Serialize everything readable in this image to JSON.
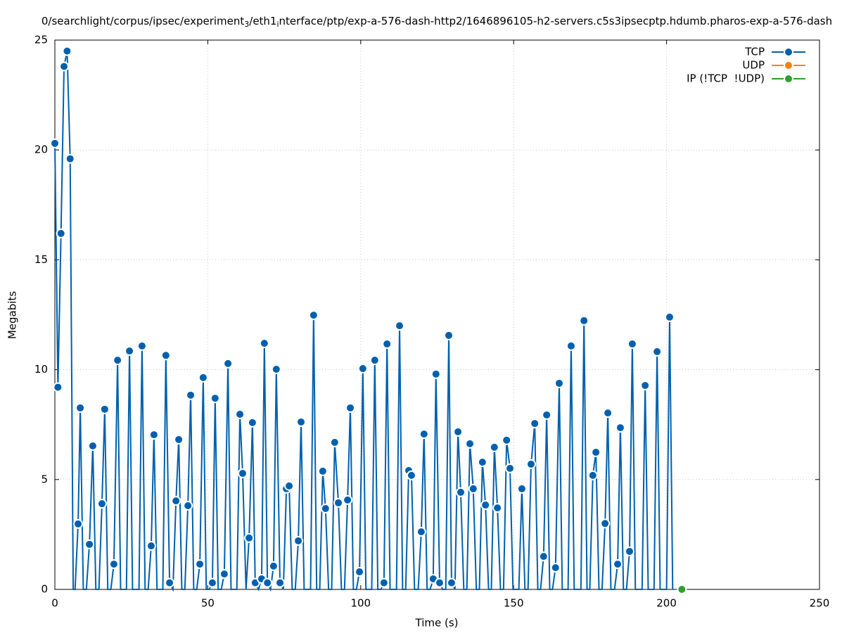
{
  "chart_data": {
    "type": "line",
    "title": [
      "0/searchlight/corpus/ipsec/experiment",
      "3",
      "/eth1",
      "i",
      "nterface/ptp/exp-a-576-dash-http2/1646896105-h2-servers.c5s3ipsecptp.hdumb.pharos-exp-a-576-dash"
    ],
    "x_label": "Time (s)",
    "y_label": "Megabits",
    "xlim": [
      0,
      250
    ],
    "xticks": [
      0,
      50,
      100,
      150,
      200,
      250
    ],
    "ylim": [
      0,
      25
    ],
    "yticks": [
      0,
      5,
      10,
      15,
      20,
      25
    ],
    "grid": true,
    "legend": "top-right",
    "series": [
      {
        "name": "TCP",
        "color": "#0060ad",
        "x": [
          0,
          1,
          2,
          3,
          4,
          5,
          6,
          6.6,
          7.6,
          8.3,
          9.3,
          10.3,
          11.3,
          12.4,
          13.4,
          14.4,
          15.4,
          16.3,
          17.3,
          18.3,
          19.3,
          20.5,
          21.5,
          23.4,
          24.4,
          25.4,
          27.5,
          28.5,
          29.5,
          30.5,
          31.5,
          32.4,
          33.4,
          35.3,
          36.3,
          37.5,
          38.6,
          39.6,
          40.5,
          41.5,
          42.5,
          43.5,
          44.4,
          45.4,
          46.4,
          47.4,
          48.5,
          49.5,
          50.5,
          51.5,
          52.4,
          53.4,
          54.4,
          55.4,
          56.6,
          57.6,
          59.5,
          60.5,
          61.4,
          62.5,
          63.5,
          64.6,
          65.5,
          66.6,
          67.6,
          68.5,
          69.5,
          70.5,
          71.5,
          72.4,
          73.6,
          74.7,
          75.7,
          76.6,
          77.6,
          78.6,
          79.6,
          80.5,
          81.5,
          83.6,
          84.6,
          85.6,
          86.6,
          87.6,
          88.5,
          89.5,
          90.5,
          91.5,
          92.7,
          93.7,
          94.7,
          95.7,
          96.6,
          97.6,
          98.6,
          99.6,
          100.7,
          101.7,
          103.6,
          104.6,
          105.6,
          106.6,
          107.6,
          108.6,
          109.6,
          111.7,
          112.7,
          113.7,
          114.7,
          115.7,
          116.6,
          117.6,
          118.8,
          119.8,
          120.7,
          121.7,
          122.7,
          123.7,
          124.6,
          125.8,
          126.8,
          127.8,
          128.8,
          129.7,
          130.8,
          131.8,
          132.7,
          133.7,
          134.7,
          135.7,
          136.8,
          137.8,
          138.8,
          139.8,
          140.8,
          141.8,
          142.7,
          143.7,
          144.7,
          145.7,
          146.7,
          147.7,
          148.8,
          149.8,
          151.7,
          152.7,
          153.7,
          154.7,
          155.7,
          156.9,
          157.9,
          158.8,
          159.8,
          160.8,
          161.8,
          162.7,
          163.7,
          164.9,
          165.9,
          167.8,
          168.8,
          169.8,
          172.0,
          173.0,
          174.0,
          174.9,
          175.9,
          176.9,
          177.9,
          178.9,
          179.9,
          180.8,
          181.8,
          183.0,
          184.0,
          184.9,
          185.9,
          186.9,
          187.9,
          188.8,
          189.8,
          192.0,
          193.0,
          194.0,
          195.9,
          196.9,
          197.9,
          200.0,
          201.0,
          202.0
        ],
        "values": [
          20.3,
          9.2,
          16.2,
          23.8,
          24.5,
          19.6,
          0,
          0,
          2.98,
          8.26,
          0,
          0,
          2.05,
          6.53,
          0,
          0,
          3.9,
          8.2,
          0,
          0,
          1.15,
          10.43,
          0,
          0,
          10.85,
          0,
          0,
          11.08,
          0,
          0,
          1.98,
          7.04,
          0,
          0,
          10.65,
          0.3,
          0,
          4.03,
          6.82,
          0,
          0,
          3.81,
          8.84,
          0,
          0,
          1.15,
          9.64,
          0,
          0,
          0.3,
          8.7,
          0,
          0,
          0.7,
          10.28,
          0,
          0,
          7.97,
          5.28,
          0,
          2.34,
          7.59,
          0.3,
          0,
          0.48,
          11.2,
          0.3,
          0,
          1.06,
          10.02,
          0.3,
          0,
          4.58,
          4.71,
          0,
          0,
          2.21,
          7.62,
          0,
          0,
          12.48,
          0,
          0,
          5.38,
          3.68,
          0,
          0,
          6.69,
          3.94,
          0,
          0,
          4.07,
          8.26,
          0,
          0,
          0.8,
          10.05,
          0,
          0,
          10.43,
          0,
          0,
          0.3,
          11.17,
          0,
          0,
          12.0,
          0,
          0,
          5.41,
          5.19,
          0,
          0,
          2.62,
          7.07,
          0,
          0,
          0.48,
          9.8,
          0.3,
          0,
          0,
          11.56,
          0.3,
          0,
          7.17,
          4.42,
          0,
          0,
          6.63,
          4.58,
          0,
          0,
          5.79,
          3.84,
          0,
          0,
          6.47,
          3.71,
          0,
          0,
          6.79,
          5.51,
          0,
          0,
          4.58,
          0,
          0,
          5.7,
          7.55,
          0,
          0,
          1.5,
          7.94,
          0,
          0,
          0.99,
          9.38,
          0,
          0,
          11.08,
          0,
          0,
          12.23,
          0,
          0,
          5.19,
          6.24,
          0,
          0,
          3.0,
          8.03,
          0,
          0,
          1.15,
          7.36,
          0,
          0,
          1.73,
          11.17,
          0,
          0,
          9.28,
          0,
          0,
          10.82,
          0,
          0,
          12.39,
          0
        ]
      },
      {
        "name": "UDP",
        "color": "#ff7f0e",
        "x": [],
        "values": []
      },
      {
        "name": "IP (!TCP  !UDP)",
        "color": "#2ca02c",
        "x": [
          205
        ],
        "values": [
          0
        ]
      }
    ]
  }
}
